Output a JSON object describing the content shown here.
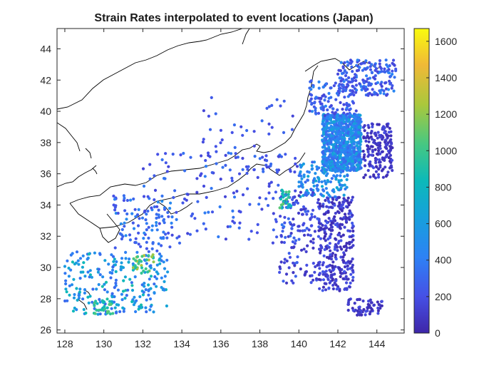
{
  "chart_data": {
    "type": "scatter",
    "title": "Strain Rates interpolated to event locations (Japan)",
    "xlabel": "",
    "ylabel": "",
    "xlim": [
      127.6,
      145.4
    ],
    "ylim": [
      25.8,
      45.3
    ],
    "xticks": [
      "128",
      "130",
      "132",
      "134",
      "136",
      "138",
      "140",
      "142",
      "144"
    ],
    "yticks": [
      "26",
      "28",
      "30",
      "32",
      "34",
      "36",
      "38",
      "40",
      "42",
      "44"
    ],
    "grid": false,
    "colormap": "parula",
    "colorbar": {
      "range": [
        0,
        1670
      ],
      "ticks": [
        "0",
        "200",
        "400",
        "600",
        "800",
        "1000",
        "1200",
        "1400",
        "1600"
      ]
    },
    "clusters": [
      {
        "x": [
          141.2,
          143.2
        ],
        "y": [
          36.2,
          39.8
        ],
        "value": [
          300,
          700
        ],
        "count": 900
      },
      {
        "x": [
          142.0,
          145.0
        ],
        "y": [
          41.0,
          43.3
        ],
        "value": [
          150,
          450
        ],
        "count": 180
      },
      {
        "x": [
          140.5,
          143.0
        ],
        "y": [
          39.5,
          42.0
        ],
        "value": [
          150,
          450
        ],
        "count": 120
      },
      {
        "x": [
          143.3,
          144.8
        ],
        "y": [
          35.7,
          39.2
        ],
        "value": [
          30,
          200
        ],
        "count": 170
      },
      {
        "x": [
          140.0,
          142.5
        ],
        "y": [
          34.5,
          36.8
        ],
        "value": [
          300,
          700
        ],
        "count": 150
      },
      {
        "x": [
          141.0,
          142.8
        ],
        "y": [
          28.5,
          34.5
        ],
        "value": [
          30,
          250
        ],
        "count": 320
      },
      {
        "x": [
          139.0,
          141.0
        ],
        "y": [
          29.0,
          35.0
        ],
        "value": [
          80,
          300
        ],
        "count": 130
      },
      {
        "x": [
          142.5,
          144.3
        ],
        "y": [
          26.9,
          28.0
        ],
        "value": [
          30,
          200
        ],
        "count": 60
      },
      {
        "x": [
          128.0,
          133.3
        ],
        "y": [
          27.0,
          31.0
        ],
        "value": [
          300,
          900
        ],
        "count": 240
      },
      {
        "x": [
          130.5,
          133.5
        ],
        "y": [
          31.0,
          34.6
        ],
        "value": [
          200,
          500
        ],
        "count": 100
      },
      {
        "x": [
          132.0,
          140.0
        ],
        "y": [
          31.5,
          37.5
        ],
        "value": [
          150,
          400
        ],
        "count": 150
      },
      {
        "x": [
          135.0,
          140.0
        ],
        "y": [
          36.0,
          41.0
        ],
        "value": [
          150,
          350
        ],
        "count": 60
      },
      {
        "x": [
          139.0,
          139.6
        ],
        "y": [
          33.8,
          35.0
        ],
        "value": [
          700,
          1100
        ],
        "count": 25
      },
      {
        "x": [
          131.5,
          132.6
        ],
        "y": [
          29.6,
          30.9
        ],
        "value": [
          900,
          1400
        ],
        "count": 30
      },
      {
        "x": [
          129.5,
          130.5
        ],
        "y": [
          27.0,
          28.0
        ],
        "value": [
          800,
          1100
        ],
        "count": 25
      }
    ]
  },
  "colors": {
    "coast": "#000000",
    "axes": "#262626",
    "text": "#262626"
  }
}
